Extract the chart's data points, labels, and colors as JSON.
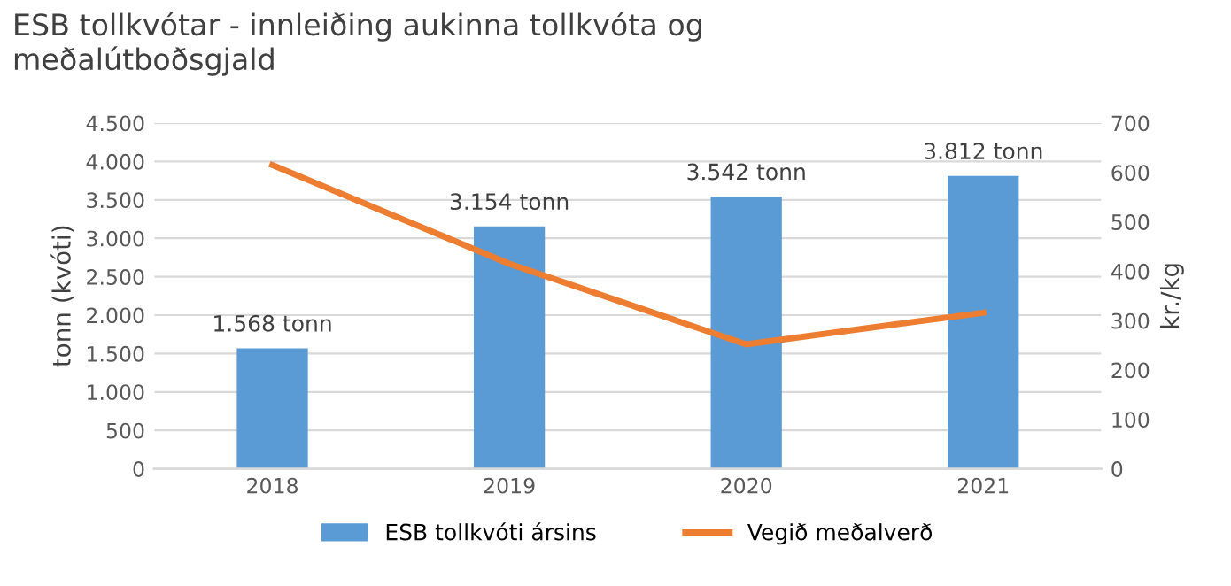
{
  "chart_data": {
    "type": "bar",
    "title": "ESB tollkvótar - innleiðing aukinna tollkvóta og\nmeðalútboðsgjald",
    "categories": [
      "2018",
      "2019",
      "2020",
      "2021"
    ],
    "series": [
      {
        "name": "ESB tollkvóti ársins",
        "color": "#5b9bd5",
        "values": [
          1568,
          3154,
          3542,
          3812
        ],
        "value_labels": [
          "1.568 tonn",
          "3.154 tonn",
          "3.542 tonn",
          "3.812 tonn"
        ]
      },
      {
        "name": "Vegið meðalverð",
        "type": "line",
        "axis": "y2",
        "color": "#ed7d31",
        "values": [
          615,
          415,
          252,
          316
        ]
      }
    ],
    "ylabel": "tonn (kvóti)",
    "y2label": "kr./kg",
    "ylim": [
      0,
      4500
    ],
    "yticks": [
      0,
      500,
      {
        "value": 1000,
        "label": "1.000"
      },
      {
        "value": 1500,
        "label": "1.500"
      },
      {
        "value": 2000,
        "label": "2.000"
      },
      {
        "value": 2500,
        "label": "2.500"
      },
      {
        "value": 3000,
        "label": "3.000"
      },
      {
        "value": 3500,
        "label": "3.500"
      },
      {
        "value": 4000,
        "label": "4.000"
      },
      {
        "value": 4500,
        "label": "4.500"
      }
    ],
    "y2lim": [
      0,
      700
    ],
    "y2ticks": [
      0,
      100,
      200,
      300,
      400,
      500,
      600,
      700
    ],
    "grid": "y",
    "legend": "bottom",
    "marker": "none",
    "line_style": "solid"
  }
}
